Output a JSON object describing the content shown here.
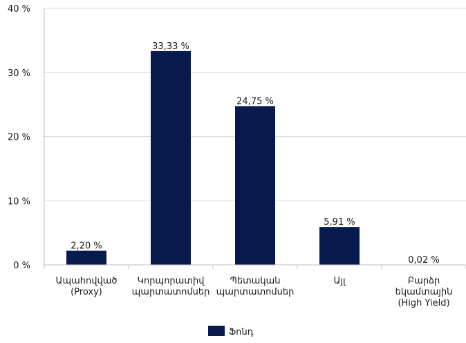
{
  "chart_data": {
    "type": "bar",
    "categories": [
      [
        "Ապահովված",
        "(Proxy)"
      ],
      [
        "Կորպորատիվ",
        "պարտատոմսեր"
      ],
      [
        "Պետական",
        "պարտատոմսեր"
      ],
      [
        "Այլ"
      ],
      [
        "Բարձր",
        "եկամտային",
        "(High Yield)"
      ]
    ],
    "series": [
      {
        "name": "Ֆոնդ",
        "values": [
          2.2,
          33.33,
          24.75,
          5.91,
          0.02
        ],
        "labels": [
          "2,20 %",
          "33,33 %",
          "24,75 %",
          "5,91 %",
          "0,02 %"
        ],
        "color": "#071a4d"
      }
    ],
    "yticks": [
      {
        "value": 0,
        "label": "0 %"
      },
      {
        "value": 10,
        "label": "10 %"
      },
      {
        "value": 20,
        "label": "20 %"
      },
      {
        "value": 30,
        "label": "30 %"
      },
      {
        "value": 40,
        "label": "40 %"
      }
    ],
    "ylim": [
      0,
      40
    ],
    "grid": true,
    "legend_position": "bottom",
    "colors": {
      "bar": "#071a4d",
      "grid": "#d9d9d9",
      "axis": "#bfbfbf"
    }
  }
}
